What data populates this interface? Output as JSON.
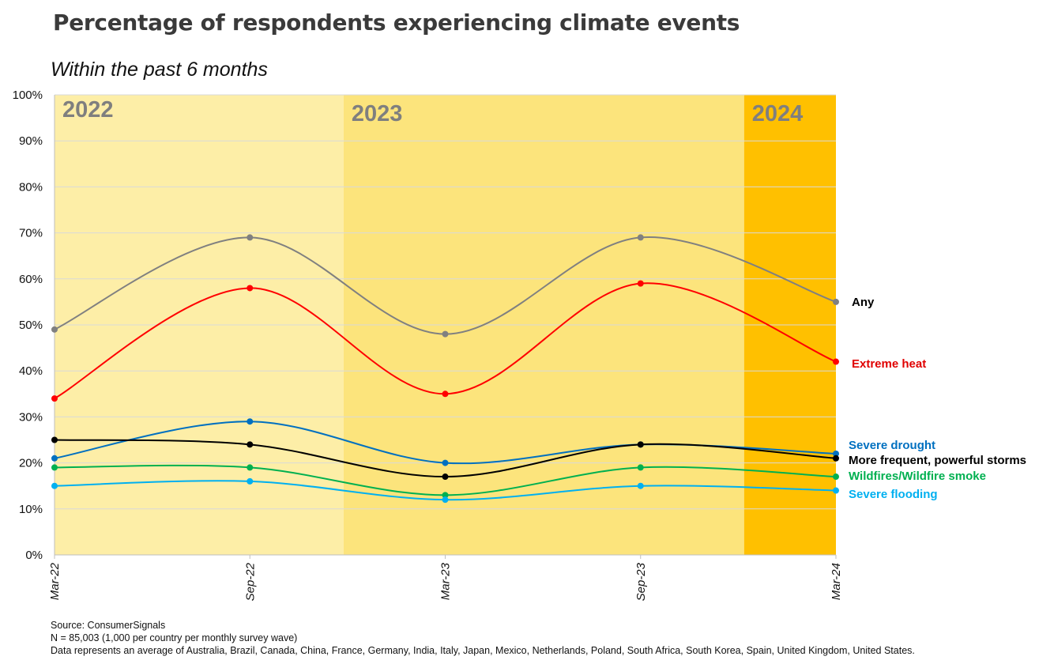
{
  "title": "Percentage of respondents experiencing climate events",
  "subtitle": "Within the past 6 months",
  "notes": [
    "Source: ConsumerSignals",
    "N = 85,003 (1,000 per country per monthly survey wave)",
    "Data represents an average of Australia, Brazil, Canada, China, France, Germany, India, Italy, Japan, Mexico, Netherlands, Poland, South Africa, South Korea, Spain, United Kingdom, United States."
  ],
  "colors": {
    "band_2022": "#FDEEA7",
    "band_2023": "#FCE47C",
    "band_2024": "#FFC000",
    "year_label": "#7F7F7F",
    "grid": "#D9D9D9",
    "axis": "#BFBFBF"
  },
  "chart_data": {
    "type": "line",
    "x": [
      "Mar-22",
      "Sep-22",
      "Mar-23",
      "Sep-23",
      "Mar-24"
    ],
    "ylim": [
      0,
      100
    ],
    "yticks": [
      "0%",
      "10%",
      "20%",
      "30%",
      "40%",
      "50%",
      "60%",
      "70%",
      "80%",
      "90%",
      "100%"
    ],
    "grid": true,
    "smooth": true,
    "bands": [
      {
        "label": "2022",
        "from": 0,
        "to": 1.48
      },
      {
        "label": "2023",
        "from": 1.48,
        "to": 3.53
      },
      {
        "label": "2024",
        "from": 3.53,
        "to": 4
      }
    ],
    "series": [
      {
        "name": "Any",
        "values": [
          49,
          69,
          48,
          69,
          55
        ],
        "color": "#808080",
        "label_color": "#000000"
      },
      {
        "name": "Extreme heat",
        "values": [
          34,
          58,
          35,
          59,
          42
        ],
        "color": "#FF0000",
        "label_color": "#E00000"
      },
      {
        "name": "Severe drought",
        "values": [
          21,
          29,
          20,
          24,
          22
        ],
        "color": "#0070C0",
        "label_color": "#0070C0"
      },
      {
        "name": "More frequent, powerful storms",
        "values": [
          25,
          24,
          17,
          24,
          21
        ],
        "color": "#000000",
        "label_color": "#000000"
      },
      {
        "name": "Wildfires/Wildfire smoke",
        "values": [
          19,
          19,
          13,
          19,
          17
        ],
        "color": "#00B050",
        "label_color": "#00B050"
      },
      {
        "name": "Severe flooding",
        "values": [
          15,
          16,
          12,
          15,
          14
        ],
        "color": "#00B0F0",
        "label_color": "#00B0F0"
      }
    ]
  }
}
